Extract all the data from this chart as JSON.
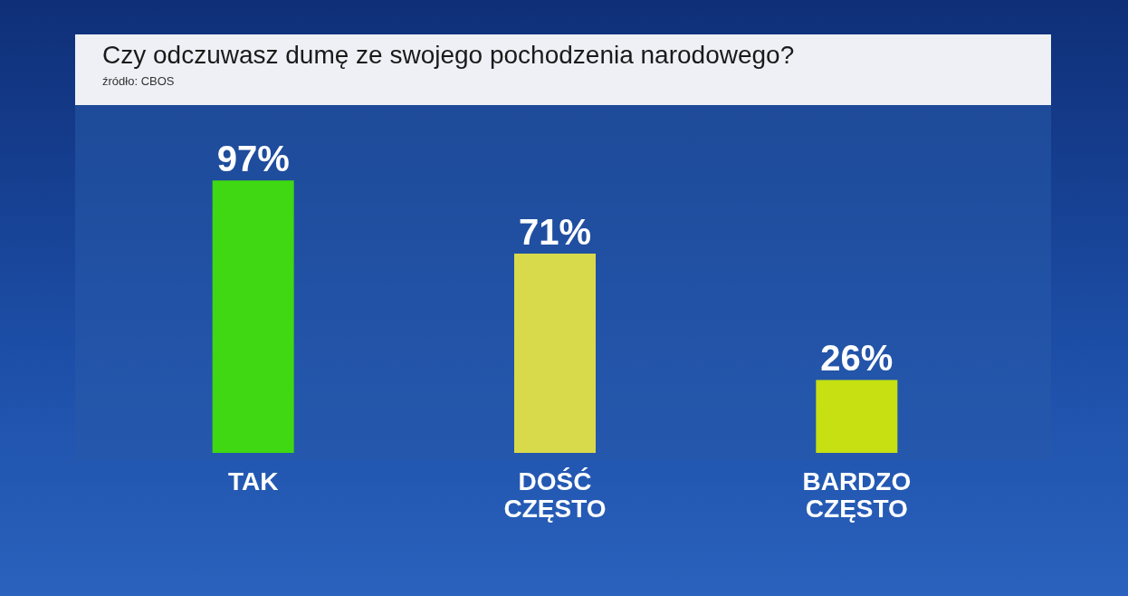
{
  "chart_data": {
    "type": "bar",
    "title": "Czy odczuwasz dumę ze swojego pochodzenia narodowego?",
    "annotations": [
      "źródło: CBOS"
    ],
    "categories": [
      "TAK",
      "DOŚĆ CZĘSTO",
      "BARDZO CZĘSTO"
    ],
    "values": [
      97,
      71,
      26
    ],
    "colors": [
      "#3fd812",
      "#d9d94c",
      "#c6e012"
    ],
    "value_labels": [
      "97%",
      "71%",
      "26%"
    ]
  }
}
